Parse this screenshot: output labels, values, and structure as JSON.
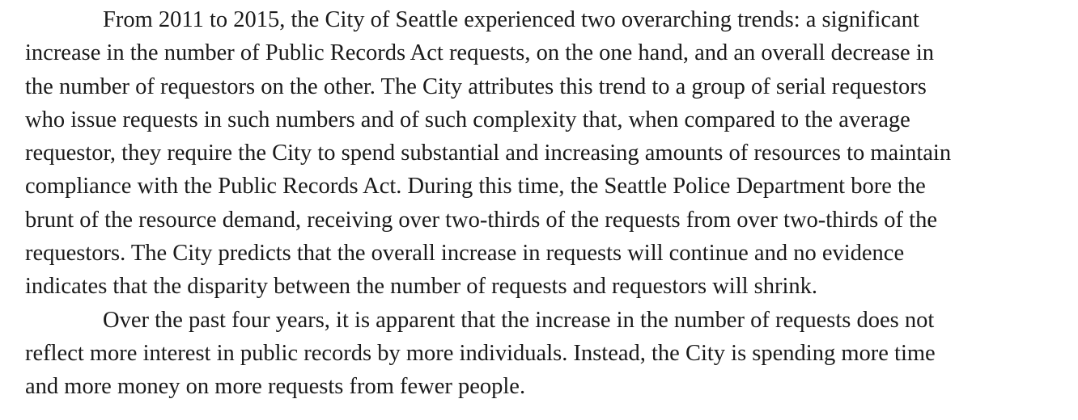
{
  "document": {
    "paragraphs": [
      {
        "lines": [
          "From 2011 to 2015, the City of Seattle experienced two overarching trends: a significant",
          "increase in the number of Public Records Act requests, on the one hand, and an overall decrease in",
          "the number of requestors on the other. The City attributes this trend to a group of serial requestors",
          "who issue requests in such numbers and of such complexity that, when compared to the average",
          "requestor, they require the City to spend substantial and increasing amounts of resources to maintain",
          "compliance with the Public Records Act. During this time, the Seattle Police Department bore the",
          "brunt of the resource demand, receiving over two-thirds of the requests from over two-thirds of the",
          "requestors. The City predicts that the overall increase in requests will continue and no evidence",
          "indicates that the disparity between the number of requests and requestors will shrink."
        ]
      },
      {
        "lines": [
          "Over the past four years, it is apparent that the increase in the number of requests does not",
          "reflect more interest in public records by more individuals. Instead, the City is spending more time",
          "and more money on more requests from fewer people."
        ]
      }
    ]
  }
}
